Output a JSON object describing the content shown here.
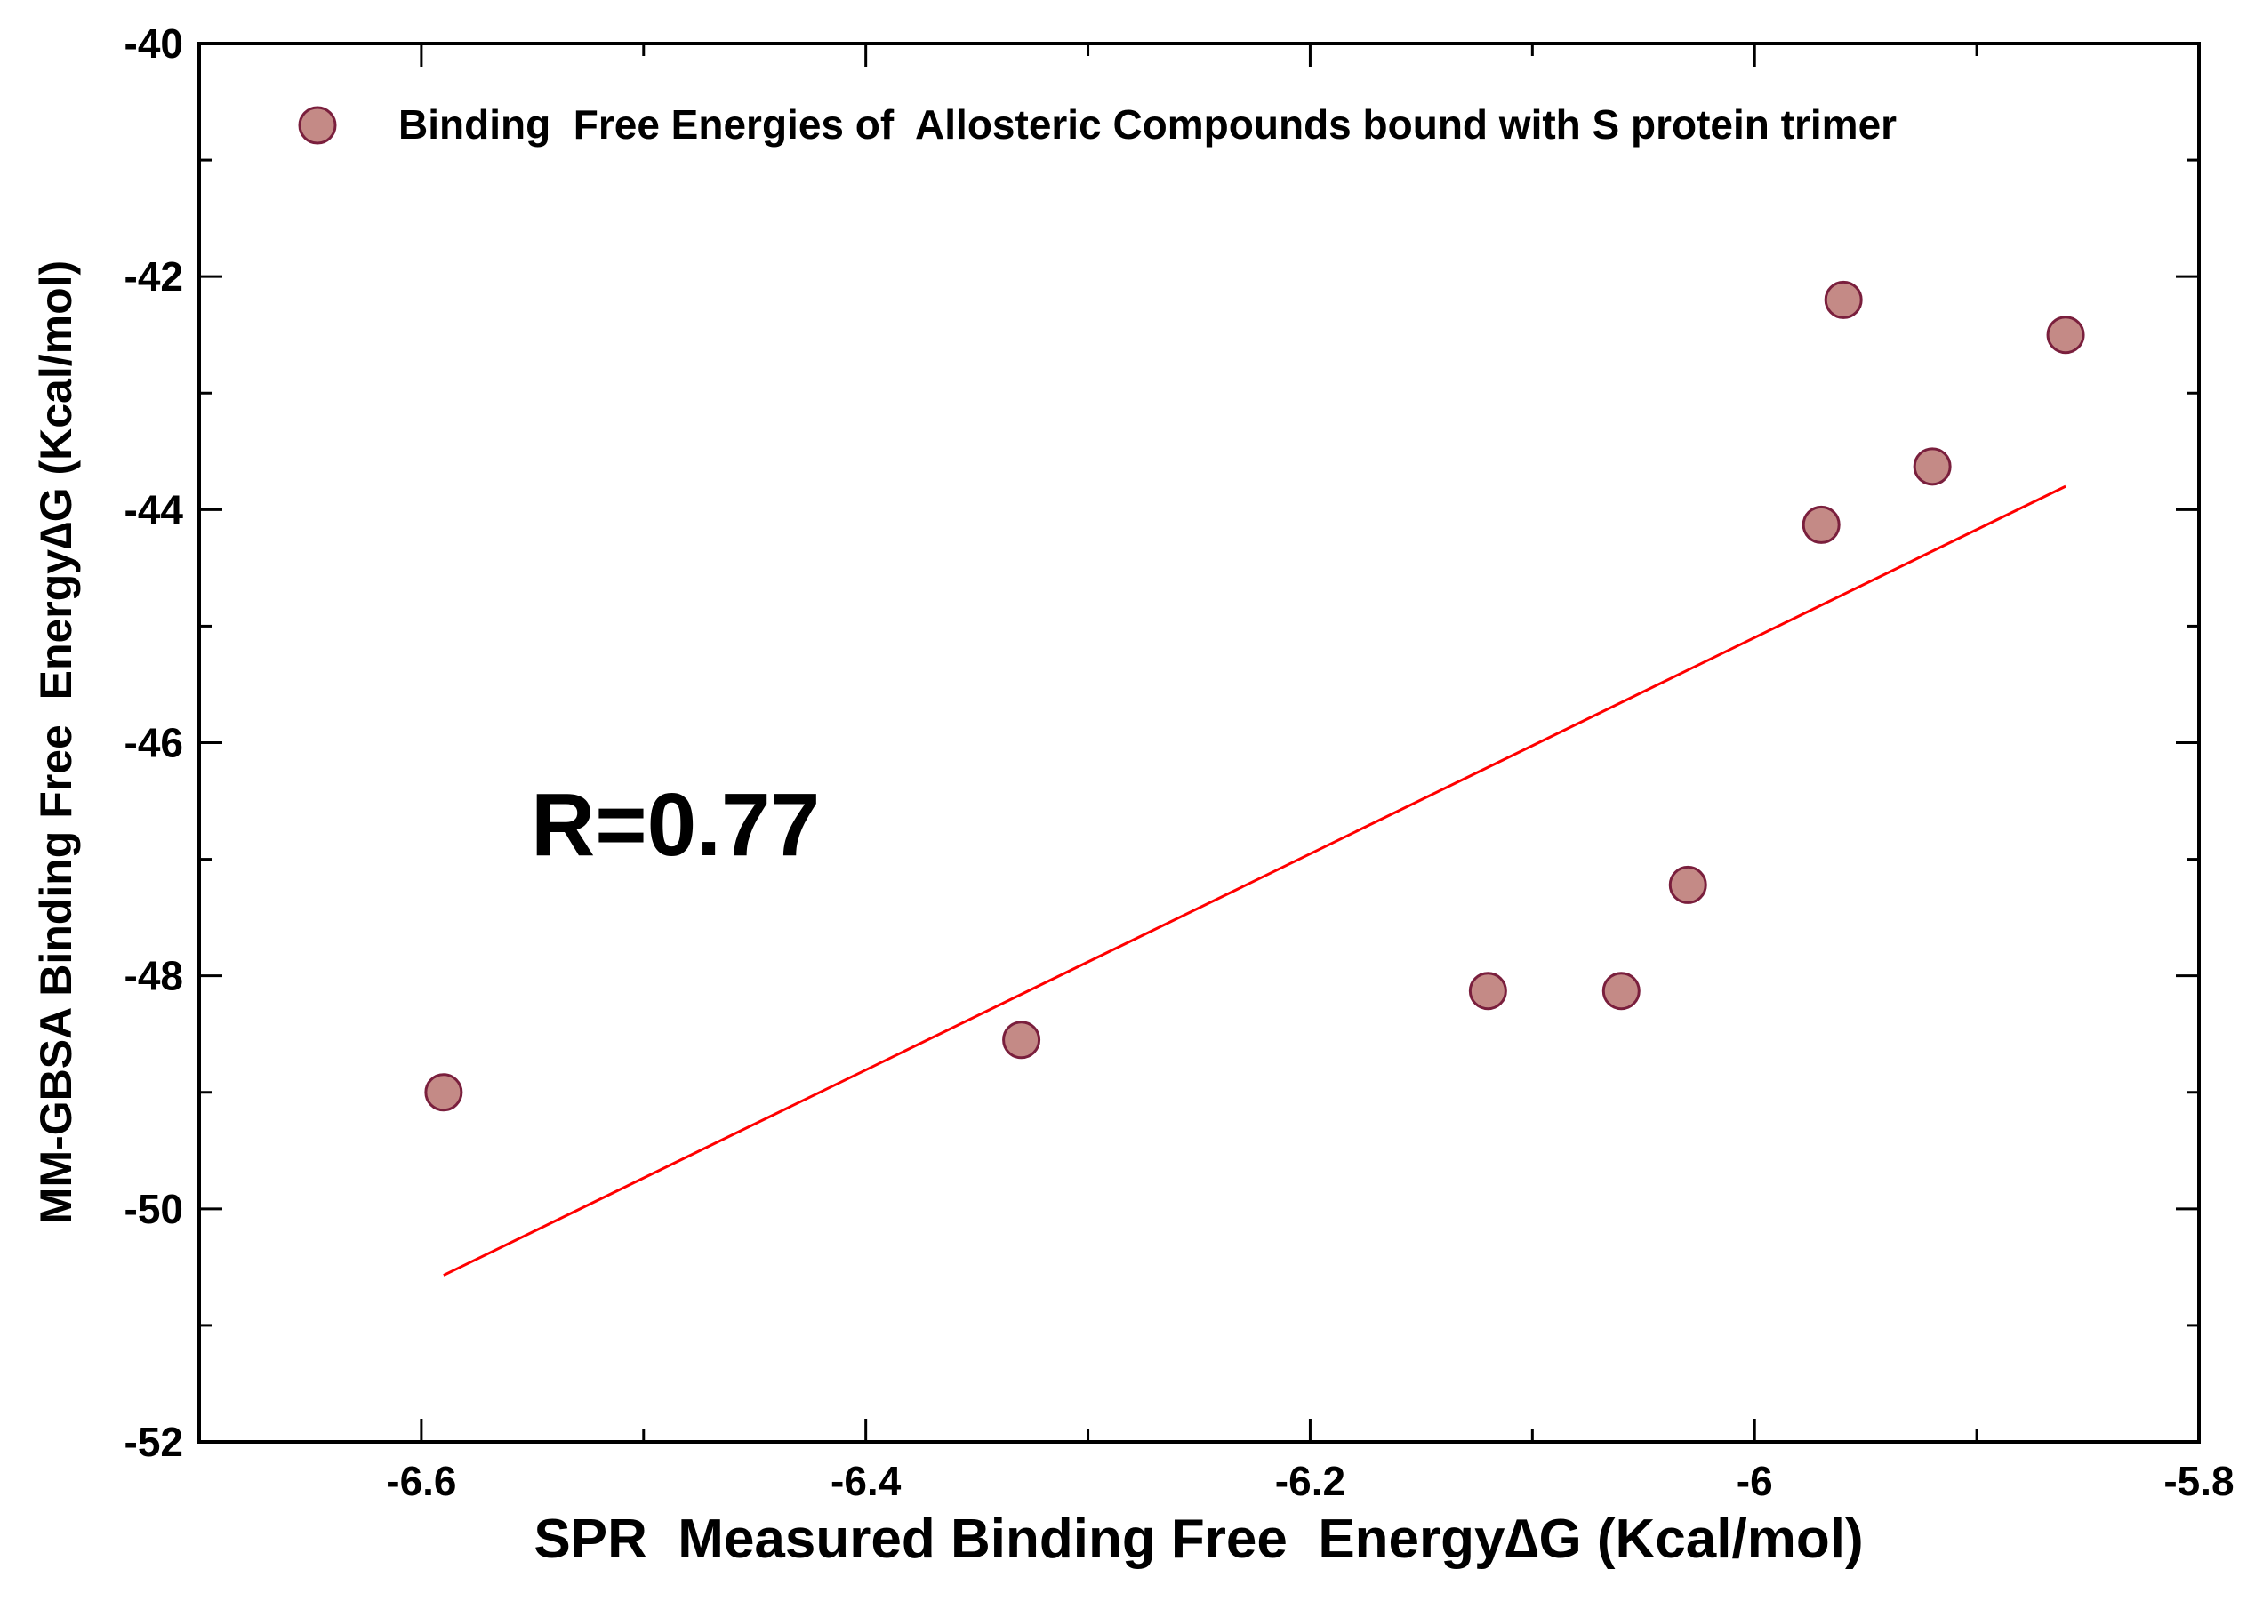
{
  "chart_data": {
    "type": "scatter",
    "title": "",
    "xlabel": "SPR  Measured Binding Free  Energy∆G (Kcal/mol)",
    "ylabel": "MM-GBSA Binding Free  Energy∆G (Kcal/mol)",
    "xlim": [
      -6.7,
      -5.8
    ],
    "ylim": [
      -52,
      -40
    ],
    "x_major_ticks": [
      -6.6,
      -6.4,
      -6.2,
      -6,
      -5.8
    ],
    "x_tick_labels": [
      "-6.6",
      "-6.4",
      "-6.2",
      "-6",
      "-5.8"
    ],
    "x_minor_ticks": [
      -6.5,
      -6.3,
      -6.1,
      -5.9
    ],
    "y_major_ticks": [
      -52,
      -50,
      -48,
      -46,
      -44,
      -42,
      -40
    ],
    "y_tick_labels": [
      "-52",
      "-50",
      "-48",
      "-46",
      "-44",
      "-42",
      "-40"
    ],
    "y_minor_ticks": [
      -51,
      -49,
      -47,
      -45,
      -43,
      -41
    ],
    "grid": false,
    "legend_position": "top",
    "series": [
      {
        "name": "Binding  Free Energies of  Allosteric Compounds bound with S protein trimer",
        "marker": "circle",
        "color": "#c48a86",
        "edge_color": "#7a1f3d",
        "x": [
          -6.59,
          -6.33,
          -6.12,
          -6.06,
          -6.03,
          -5.97,
          -5.96,
          -5.92,
          -5.86
        ],
        "y": [
          -49.0,
          -48.55,
          -48.13,
          -48.13,
          -47.22,
          -44.13,
          -42.2,
          -43.63,
          -42.5
        ]
      }
    ],
    "fit_line": {
      "color": "#ff0000",
      "x": [
        -6.59,
        -5.86
      ],
      "y": [
        -50.57,
        -43.8
      ]
    },
    "annotations": [
      {
        "text": "R=0.77",
        "x": -6.55,
        "y": -46.7
      }
    ]
  }
}
